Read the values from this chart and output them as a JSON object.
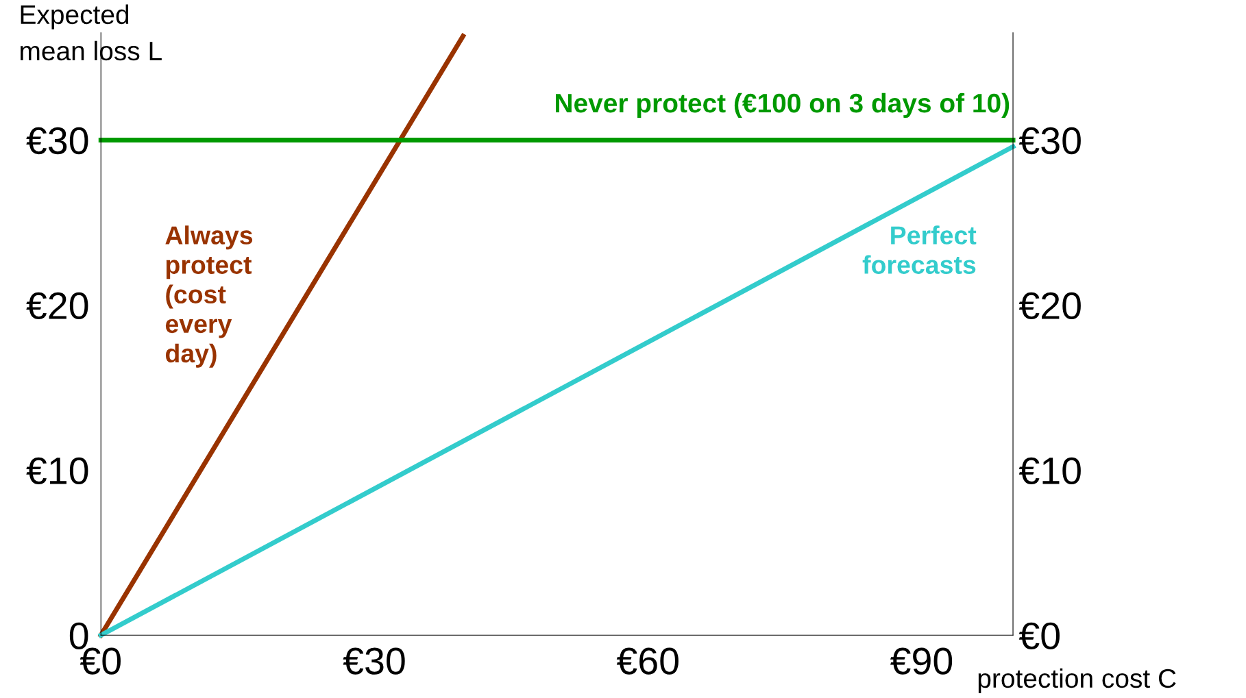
{
  "chart_data": {
    "type": "line",
    "xlabel": "protection cost C",
    "ylabel": "Expected\nmean loss L",
    "xlim": [
      0,
      100
    ],
    "xticks": [
      {
        "value": 0,
        "label": "€0"
      },
      {
        "value": 30,
        "label": "€30"
      },
      {
        "value": 60,
        "label": "€60"
      },
      {
        "value": 90,
        "label": "€90"
      }
    ],
    "ylim": [
      0,
      36.5
    ],
    "yticks": [
      0,
      {
        "value": 10,
        "label": "€10"
      },
      {
        "value": 20,
        "label": "€20"
      },
      {
        "value": 30,
        "label": "€30"
      }
    ],
    "y2lim": [
      0,
      36.5
    ],
    "y2ticks": [
      {
        "value": 0,
        "label": "€0"
      },
      {
        "value": 10,
        "label": "€10"
      },
      {
        "value": 20,
        "label": "€20"
      },
      {
        "value": 30,
        "label": "€30"
      }
    ],
    "grid": false,
    "legend": false,
    "marker": "none",
    "line_style": "solid",
    "series": [
      {
        "name": "Always\nprotect\n(cost\nevery\nday)",
        "color": "#993300",
        "x": [
          0,
          39.7
        ],
        "values": [
          0,
          36.3
        ]
      },
      {
        "name": "Never protect (€100 on 3 days of 10)",
        "color": "#009900",
        "x": [
          0,
          100
        ],
        "values": [
          30,
          30
        ]
      },
      {
        "name": "Perfect\nforecasts",
        "color": "#33cccc",
        "x": [
          0,
          100
        ],
        "values": [
          0,
          29.6
        ]
      }
    ]
  }
}
